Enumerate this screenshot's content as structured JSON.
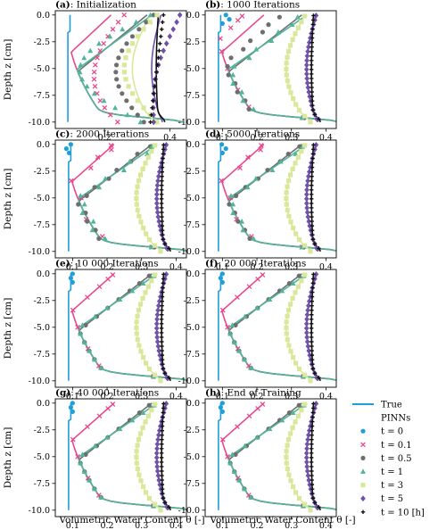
{
  "figure": {
    "xlabel": "Volumetric Water Content θ [-]",
    "ylabel": "Depth z [cm]"
  },
  "legend": [
    {
      "label": "True",
      "kind": "line",
      "color": "#1f9fd9"
    },
    {
      "label": "PINNs",
      "kind": "header"
    },
    {
      "label": "t = 0",
      "marker": "circle",
      "color": "#1f9fd9"
    },
    {
      "label": "t = 0.1",
      "marker": "x",
      "color": "#e8478e"
    },
    {
      "label": "t = 0.5",
      "marker": "circle",
      "color": "#6e6e6e"
    },
    {
      "label": "t = 1",
      "marker": "triangle",
      "color": "#52b59b"
    },
    {
      "label": "t = 3",
      "marker": "square",
      "color": "#d9e89a"
    },
    {
      "label": "t = 5",
      "marker": "diamond",
      "color": "#7051a8"
    },
    {
      "label": "t = 10 [h]",
      "marker": "plus",
      "color": "#111111"
    }
  ],
  "chart_data": [
    {
      "type": "line",
      "panel": "a",
      "title_tag": "(a)",
      "title_rest": ": Initialization",
      "xlim": [
        0.05,
        0.45
      ],
      "ylim": [
        -10.6,
        0.4
      ],
      "xticks": [
        "0.2",
        "0.4"
      ],
      "xtick_values": [
        0.2,
        0.4
      ],
      "yticks": [
        "0.0",
        "-2.5",
        "-5.0",
        "-7.5",
        "-10.0"
      ],
      "ytick_values": [
        0,
        -2.5,
        -5,
        -7.5,
        -10
      ]
    },
    {
      "type": "line",
      "panel": "b",
      "title_tag": "(b)",
      "title_rest": ": 1000 Iterations",
      "xlim": [
        0.05,
        0.43
      ],
      "ylim": [
        -10.6,
        0.4
      ],
      "xticks": [
        "0.1",
        "0.2",
        "0.3",
        "0.4"
      ],
      "xtick_values": [
        0.1,
        0.2,
        0.3,
        0.4
      ],
      "yticks": [
        "0.0",
        "-2.5",
        "-5.0",
        "-7.5",
        "-10.0"
      ],
      "ytick_values": [
        0,
        -2.5,
        -5,
        -7.5,
        -10
      ]
    },
    {
      "type": "line",
      "panel": "c",
      "title_tag": "(c)",
      "title_rest": ": 2000 Iterations",
      "xlim": [
        0.05,
        0.43
      ],
      "ylim": [
        -10.6,
        0.4
      ],
      "xticks": [
        "0.1",
        "0.2",
        "0.3",
        "0.4"
      ],
      "xtick_values": [
        0.1,
        0.2,
        0.3,
        0.4
      ],
      "yticks": [
        "0.0",
        "-2.5",
        "-5.0",
        "-7.5",
        "-10.0"
      ],
      "ytick_values": [
        0,
        -2.5,
        -5,
        -7.5,
        -10
      ]
    },
    {
      "type": "line",
      "panel": "d",
      "title_tag": "(d)",
      "title_rest": ": 5000 Iterations",
      "xlim": [
        0.05,
        0.43
      ],
      "ylim": [
        -10.6,
        0.4
      ],
      "xticks": [
        "0.1",
        "0.2",
        "0.3",
        "0.4"
      ],
      "xtick_values": [
        0.1,
        0.2,
        0.3,
        0.4
      ],
      "yticks": [
        "0.0",
        "-2.5",
        "-5.0",
        "-7.5",
        "-10.0"
      ],
      "ytick_values": [
        0,
        -2.5,
        -5,
        -7.5,
        -10
      ]
    },
    {
      "type": "line",
      "panel": "e",
      "title_tag": "(e)",
      "title_rest": ": 10 000 Iterations",
      "xlim": [
        0.05,
        0.43
      ],
      "ylim": [
        -10.6,
        0.4
      ],
      "xticks": [
        "0.1",
        "0.2",
        "0.3",
        "0.4"
      ],
      "xtick_values": [
        0.1,
        0.2,
        0.3,
        0.4
      ],
      "yticks": [
        "0.0",
        "-2.5",
        "-5.0",
        "-7.5",
        "-10.0"
      ],
      "ytick_values": [
        0,
        -2.5,
        -5,
        -7.5,
        -10
      ]
    },
    {
      "type": "line",
      "panel": "f",
      "title_tag": "(f)",
      "title_rest": ": 20 000 Iterations",
      "xlim": [
        0.05,
        0.43
      ],
      "ylim": [
        -10.6,
        0.4
      ],
      "xticks": [
        "0.1",
        "0.2",
        "0.3",
        "0.4"
      ],
      "xtick_values": [
        0.1,
        0.2,
        0.3,
        0.4
      ],
      "yticks": [
        "0.0",
        "-2.5",
        "-5.0",
        "-7.5",
        "-10.0"
      ],
      "ytick_values": [
        0,
        -2.5,
        -5,
        -7.5,
        -10
      ]
    },
    {
      "type": "line",
      "panel": "g",
      "title_tag": "(g)",
      "title_rest": ": 40 000 Iterations",
      "xlim": [
        0.05,
        0.43
      ],
      "ylim": [
        -10.6,
        0.4
      ],
      "xticks": [
        "0.1",
        "0.2",
        "0.3",
        "0.4"
      ],
      "xtick_values": [
        0.1,
        0.2,
        0.3,
        0.4
      ],
      "yticks": [
        "0.0",
        "-2.5",
        "-5.0",
        "-7.5",
        "-10.0"
      ],
      "ytick_values": [
        0,
        -2.5,
        -5,
        -7.5,
        -10
      ]
    },
    {
      "type": "line",
      "panel": "h",
      "title_tag": "(h)",
      "title_rest": ": End of Training",
      "xlim": [
        0.05,
        0.43
      ],
      "ylim": [
        -10.6,
        0.4
      ],
      "xticks": [
        "0.1",
        "0.2",
        "0.3",
        "0.4"
      ],
      "xtick_values": [
        0.1,
        0.2,
        0.3,
        0.4
      ],
      "yticks": [
        "0.0",
        "-2.5",
        "-5.0",
        "-7.5",
        "-10.0"
      ],
      "ytick_values": [
        0,
        -2.5,
        -5,
        -7.5,
        -10
      ]
    }
  ]
}
